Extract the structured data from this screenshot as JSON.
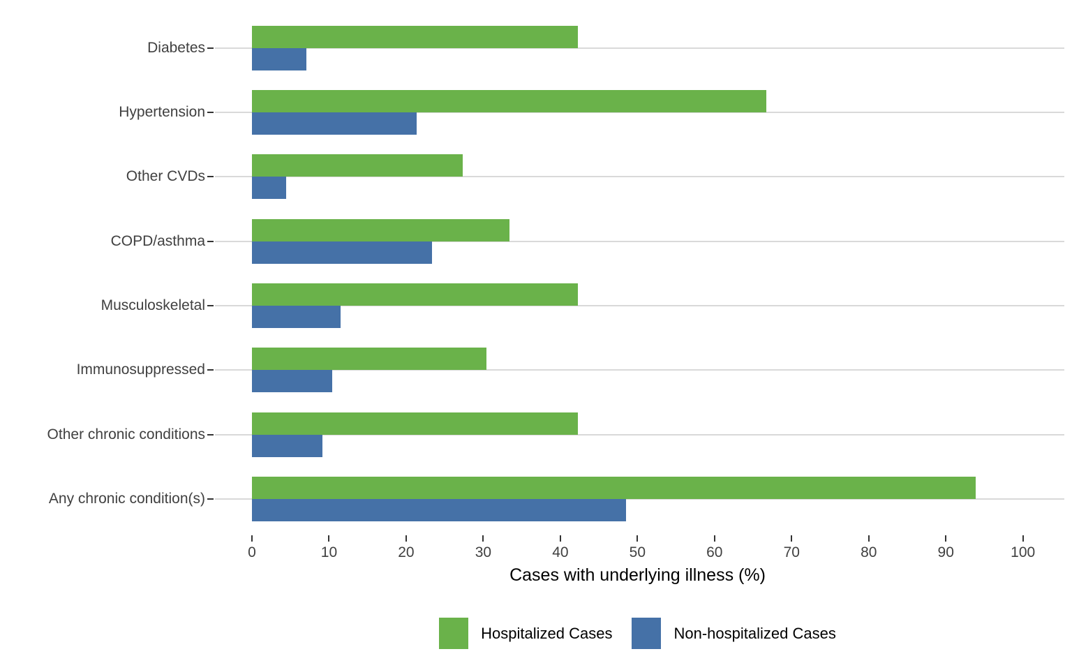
{
  "chart_data": {
    "type": "bar",
    "orientation": "horizontal",
    "title": "",
    "xlabel": "Cases with underlying illness (%)",
    "ylabel": "",
    "categories": [
      "Diabetes",
      "Hypertension",
      "Other CVDs",
      "COPD/asthma",
      "Musculoskeletal",
      "Immunosuppressed",
      "Other chronic conditions",
      "Any chronic condition(s)"
    ],
    "series": [
      {
        "name": "Hospitalized Cases",
        "color": "#6ab24a",
        "values": [
          42.3,
          66.7,
          27.3,
          33.4,
          42.3,
          30.4,
          42.3,
          93.9
        ]
      },
      {
        "name": "Non-hospitalized Cases",
        "color": "#4571a7",
        "values": [
          7.1,
          21.4,
          4.4,
          23.4,
          11.5,
          10.4,
          9.1,
          48.5
        ]
      }
    ],
    "x_ticks": [
      0,
      10,
      20,
      30,
      40,
      50,
      60,
      70,
      80,
      90,
      100
    ],
    "xlim": [
      0,
      105.3
    ],
    "grid": "horizontal category reference lines only",
    "legend_position": "bottom"
  },
  "colors": {
    "background": "#ffffff",
    "gridline": "#d9d9d9",
    "tick_mark": "#333333",
    "tick_label": "#404040",
    "category_label": "#404040",
    "axis_title": "#000000",
    "legend_text": "#000000"
  }
}
